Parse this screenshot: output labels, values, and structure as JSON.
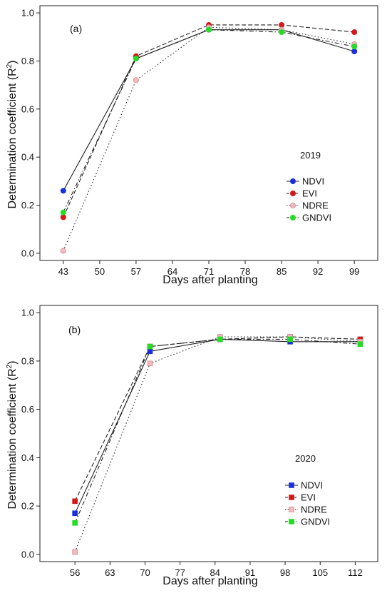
{
  "chart_data": [
    {
      "type": "line",
      "panel_label": "(a)",
      "legend_title": "2019",
      "xlabel": "Days after planting",
      "ylabel": "Determination coefficient",
      "ylabel_suffix": "(R",
      "ylabel_sup": "2",
      "ylabel_close": ")",
      "xlim": [
        38.5,
        103.5
      ],
      "ylim": [
        -0.03,
        1.03
      ],
      "xticks": [
        43,
        50,
        57,
        64,
        71,
        78,
        85,
        92,
        99
      ],
      "yticks": [
        "0.0",
        "0.2",
        "0.4",
        "0.6",
        "0.8",
        "1.0"
      ],
      "marker": "circle",
      "legend_position": "right-middle",
      "x": [
        43,
        57,
        71,
        85,
        99
      ],
      "series": [
        {
          "name": "NDVI",
          "color": "#1a2fd8",
          "dash": "solid",
          "values": [
            0.26,
            0.81,
            0.93,
            0.93,
            0.84
          ]
        },
        {
          "name": "EVI",
          "color": "#d11a1a",
          "dash": "dashed",
          "values": [
            0.15,
            0.82,
            0.95,
            0.95,
            0.92
          ]
        },
        {
          "name": "NDRE",
          "color": "#f4b8be",
          "dash": "dotted",
          "values": [
            0.01,
            0.72,
            0.94,
            0.93,
            0.87
          ]
        },
        {
          "name": "GNDVI",
          "color": "#22dd22",
          "dash": "dotdash",
          "values": [
            0.17,
            0.81,
            0.93,
            0.92,
            0.86
          ]
        }
      ]
    },
    {
      "type": "line",
      "panel_label": "(b)",
      "legend_title": "2020",
      "xlabel": "Days after planting",
      "ylabel": "Determination coefficient",
      "ylabel_suffix": "(R",
      "ylabel_sup": "2",
      "ylabel_close": ")",
      "xlim": [
        49,
        116.5
      ],
      "ylim": [
        -0.03,
        1.03
      ],
      "xticks": [
        56,
        63,
        70,
        77,
        84,
        91,
        98,
        105,
        112
      ],
      "yticks": [
        "0.0",
        "0.2",
        "0.4",
        "0.6",
        "0.8",
        "1.0"
      ],
      "marker": "square",
      "legend_position": "right-bottom",
      "x": [
        56,
        71,
        85,
        99,
        113
      ],
      "series": [
        {
          "name": "NDVI",
          "color": "#1a2fd8",
          "dash": "solid",
          "values": [
            0.17,
            0.84,
            0.89,
            0.88,
            0.88
          ]
        },
        {
          "name": "EVI",
          "color": "#d11a1a",
          "dash": "dashed",
          "values": [
            0.22,
            0.86,
            0.89,
            0.9,
            0.89
          ]
        },
        {
          "name": "NDRE",
          "color": "#f4b8be",
          "dash": "dotted",
          "values": [
            0.01,
            0.79,
            0.9,
            0.9,
            0.88
          ]
        },
        {
          "name": "GNDVI",
          "color": "#22dd22",
          "dash": "dotdash",
          "values": [
            0.13,
            0.86,
            0.89,
            0.89,
            0.87
          ]
        }
      ]
    }
  ]
}
